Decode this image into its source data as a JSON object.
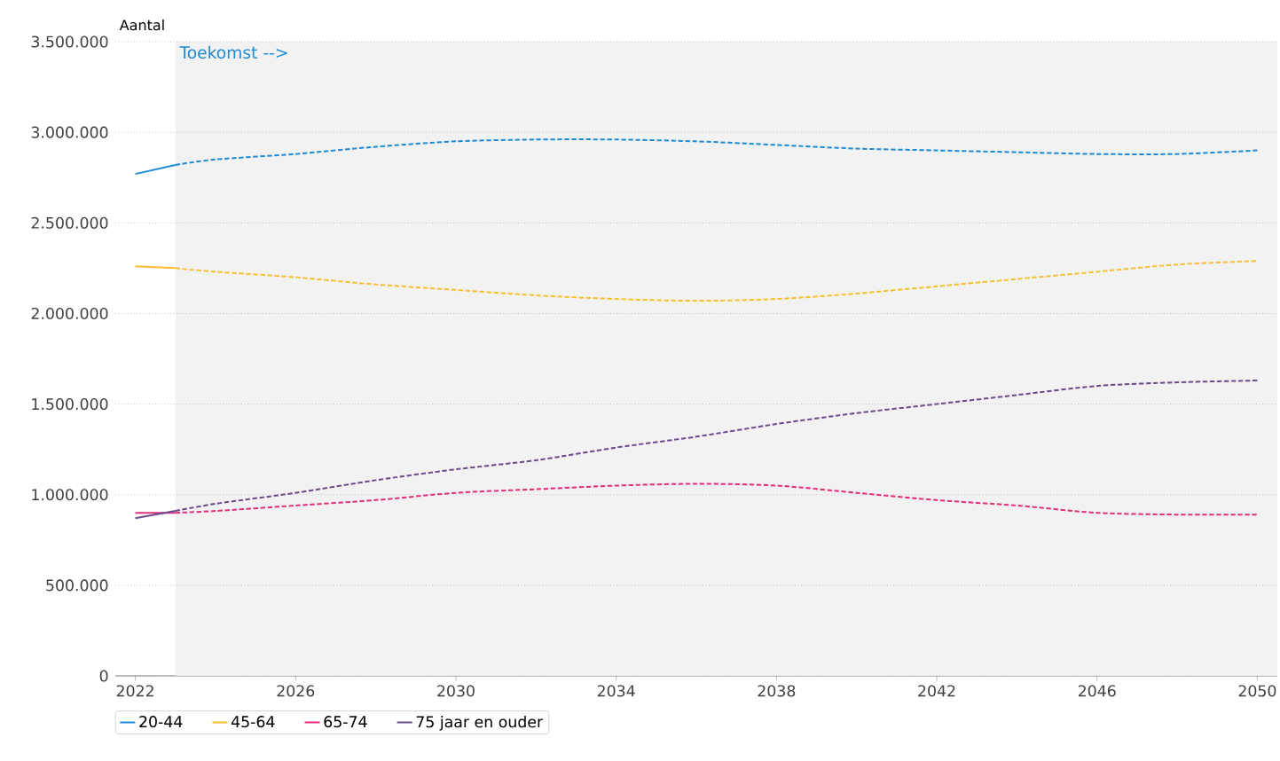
{
  "chart_data": {
    "type": "line",
    "ylabel": "Aantal",
    "xlim": [
      2021.5,
      2050.5
    ],
    "xticks": [
      2022,
      2026,
      2030,
      2034,
      2038,
      2042,
      2046,
      2050
    ],
    "ylim": [
      0,
      3500000
    ],
    "yticks": [
      {
        "value": 0,
        "label": "0"
      },
      {
        "value": 500000,
        "label": "500.000"
      },
      {
        "value": 1000000,
        "label": "1.000.000"
      },
      {
        "value": 1500000,
        "label": "1.500.000"
      },
      {
        "value": 2000000,
        "label": "2.000.000"
      },
      {
        "value": 2500000,
        "label": "2.500.000"
      },
      {
        "value": 3000000,
        "label": "3.000.000"
      },
      {
        "value": 3500000,
        "label": "3.500.000"
      }
    ],
    "grid": "y",
    "legend": "bottom",
    "bands": [
      {
        "axis": "x",
        "from": 2023,
        "to": 2050.5,
        "label": "Toekomst -->",
        "color": "#f2f2f2"
      }
    ],
    "series": [
      {
        "name": "20-44",
        "color": "#1f8ad6",
        "line_style": "solid",
        "x": [
          2022,
          2023
        ],
        "values": [
          2770000,
          2820000
        ]
      },
      {
        "name": "45-64",
        "color": "#fbbd2e",
        "line_style": "solid",
        "x": [
          2022,
          2023
        ],
        "values": [
          2260000,
          2250000
        ]
      },
      {
        "name": "65-74",
        "color": "#e0307a",
        "line_style": "solid",
        "x": [
          2022,
          2023
        ],
        "values": [
          900000,
          900000
        ]
      },
      {
        "name": "75 jaar en ouder",
        "color": "#6b4a8c",
        "line_style": "solid",
        "x": [
          2022,
          2023
        ],
        "values": [
          870000,
          910000
        ]
      },
      {
        "color": "#1f8ad6",
        "line_style": "dashed",
        "x": [
          2023,
          2024,
          2026,
          2028,
          2030,
          2032,
          2034,
          2036,
          2038,
          2040,
          2042,
          2044,
          2046,
          2048,
          2050
        ],
        "values": [
          2820000,
          2850000,
          2880000,
          2920000,
          2950000,
          2960000,
          2960000,
          2950000,
          2930000,
          2910000,
          2900000,
          2890000,
          2880000,
          2880000,
          2900000
        ]
      },
      {
        "color": "#fbbd2e",
        "line_style": "dashed",
        "x": [
          2023,
          2024,
          2026,
          2028,
          2030,
          2032,
          2034,
          2036,
          2038,
          2040,
          2042,
          2044,
          2046,
          2048,
          2050
        ],
        "values": [
          2250000,
          2230000,
          2200000,
          2160000,
          2130000,
          2100000,
          2080000,
          2070000,
          2080000,
          2110000,
          2150000,
          2190000,
          2230000,
          2270000,
          2290000
        ]
      },
      {
        "color": "#e0307a",
        "line_style": "dashed",
        "x": [
          2023,
          2024,
          2026,
          2028,
          2030,
          2032,
          2034,
          2036,
          2038,
          2040,
          2042,
          2044,
          2046,
          2048,
          2050
        ],
        "values": [
          900000,
          910000,
          940000,
          970000,
          1010000,
          1030000,
          1050000,
          1060000,
          1050000,
          1010000,
          970000,
          940000,
          900000,
          890000,
          890000
        ]
      },
      {
        "color": "#6b4a8c",
        "line_style": "dashed",
        "x": [
          2023,
          2024,
          2026,
          2028,
          2030,
          2032,
          2034,
          2036,
          2038,
          2040,
          2042,
          2044,
          2046,
          2048,
          2050
        ],
        "values": [
          910000,
          950000,
          1010000,
          1080000,
          1140000,
          1190000,
          1260000,
          1320000,
          1390000,
          1450000,
          1500000,
          1550000,
          1600000,
          1620000,
          1630000
        ]
      }
    ]
  }
}
